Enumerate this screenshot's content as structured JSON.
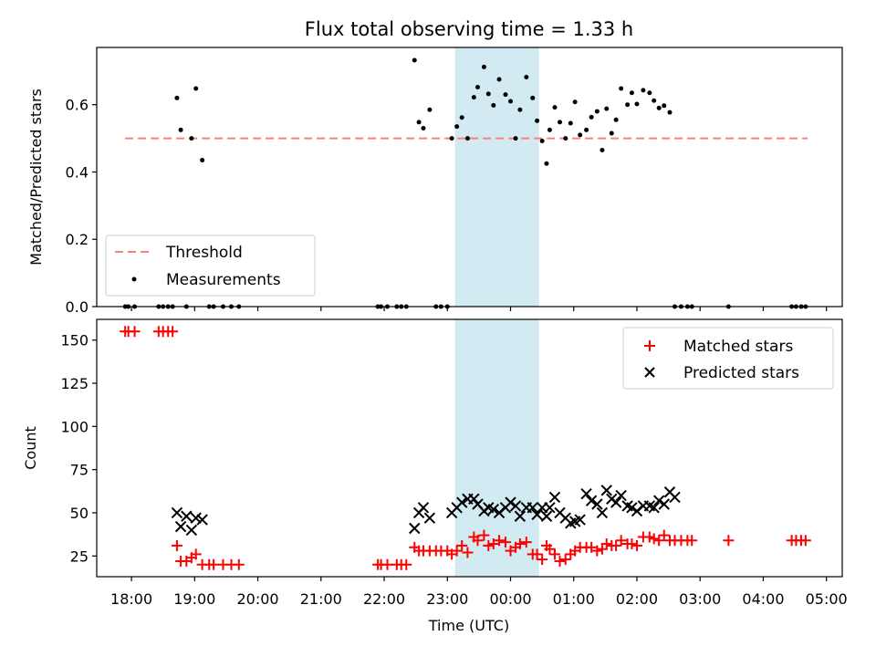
{
  "chart_data": [
    {
      "type": "scatter",
      "title": "Flux total observing time = 1.33 h",
      "xlabel": "",
      "ylabel": "Matched/Predicted stars",
      "ylim": [
        0,
        0.77
      ],
      "yticks": [
        0.0,
        0.2,
        0.4,
        0.6
      ],
      "ytick_labels": [
        "0.0",
        "0.2",
        "0.4",
        "0.6"
      ],
      "grid": false,
      "legend": "lower-left",
      "threshold": {
        "name": "Threshold",
        "value": 0.5,
        "x_start": 17.9,
        "x_end": 28.7,
        "color": "#ff7f7f"
      },
      "series": [
        {
          "name": "Measurements",
          "color": "#000000",
          "x": [
            17.9,
            17.95,
            18.05,
            18.43,
            18.5,
            18.58,
            18.65,
            18.72,
            18.78,
            18.87,
            18.95,
            19.02,
            19.12,
            19.23,
            19.3,
            19.45,
            19.58,
            19.7,
            21.9,
            21.95,
            22.05,
            22.2,
            22.27,
            22.35,
            22.48,
            22.55,
            22.62,
            22.72,
            22.82,
            22.9,
            23.0,
            23.07,
            23.15,
            23.23,
            23.32,
            23.42,
            23.48,
            23.58,
            23.65,
            23.73,
            23.82,
            23.92,
            24.0,
            24.08,
            24.15,
            24.25,
            24.35,
            24.42,
            24.5,
            24.57,
            24.62,
            24.7,
            24.78,
            24.87,
            24.95,
            25.02,
            25.1,
            25.2,
            25.28,
            25.37,
            25.45,
            25.52,
            25.6,
            25.67,
            25.75,
            25.85,
            25.92,
            26.0,
            26.1,
            26.2,
            26.27,
            26.35,
            26.43,
            26.52,
            26.6,
            26.7,
            26.8,
            26.87,
            27.45,
            28.45,
            28.52,
            28.6,
            28.67
          ],
          "y": [
            0.0,
            0.0,
            0.0,
            0.0,
            0.0,
            0.0,
            0.0,
            0.62,
            0.525,
            0.0,
            0.5,
            0.648,
            0.435,
            0.0,
            0.0,
            0.0,
            0.0,
            0.0,
            0.0,
            0.0,
            0.0,
            0.0,
            0.0,
            0.0,
            0.732,
            0.548,
            0.53,
            0.585,
            0.0,
            0.0,
            0.0,
            0.5,
            0.535,
            0.562,
            0.5,
            0.622,
            0.652,
            0.712,
            0.632,
            0.598,
            0.675,
            0.63,
            0.61,
            0.5,
            0.585,
            0.682,
            0.62,
            0.552,
            0.492,
            0.425,
            0.525,
            0.592,
            0.548,
            0.5,
            0.545,
            0.608,
            0.51,
            0.525,
            0.563,
            0.58,
            0.465,
            0.588,
            0.515,
            0.555,
            0.648,
            0.6,
            0.635,
            0.602,
            0.643,
            0.635,
            0.612,
            0.59,
            0.597,
            0.577,
            0.0,
            0.0,
            0.0,
            0.0,
            0.0,
            0.0,
            0.0,
            0.0,
            0.0
          ]
        }
      ]
    },
    {
      "type": "scatter",
      "title": "",
      "xlabel": "Time (UTC)",
      "ylabel": "Count",
      "ylim": [
        13,
        162
      ],
      "yticks": [
        25,
        50,
        75,
        100,
        125,
        150
      ],
      "ytick_labels": [
        "25",
        "50",
        "75",
        "100",
        "125",
        "150"
      ],
      "xlim": [
        17.45,
        29.25
      ],
      "xticks": [
        18,
        19,
        20,
        21,
        22,
        23,
        24,
        25,
        26,
        27,
        28,
        29
      ],
      "xtick_labels": [
        "18:00",
        "19:00",
        "20:00",
        "21:00",
        "22:00",
        "23:00",
        "00:00",
        "01:00",
        "02:00",
        "03:00",
        "04:00",
        "05:00"
      ],
      "grid": false,
      "legend": "top-right",
      "series": [
        {
          "name": "Matched stars",
          "marker": "plus",
          "color": "#ff0000",
          "x": [
            17.9,
            17.95,
            18.05,
            18.43,
            18.5,
            18.58,
            18.65,
            18.72,
            18.78,
            18.87,
            18.95,
            19.02,
            19.12,
            19.23,
            19.3,
            19.45,
            19.58,
            19.7,
            21.9,
            21.95,
            22.05,
            22.2,
            22.27,
            22.35,
            22.48,
            22.55,
            22.62,
            22.72,
            22.82,
            22.9,
            23.0,
            23.07,
            23.15,
            23.23,
            23.32,
            23.42,
            23.48,
            23.58,
            23.65,
            23.73,
            23.82,
            23.92,
            24.0,
            24.08,
            24.15,
            24.25,
            24.35,
            24.42,
            24.5,
            24.57,
            24.62,
            24.7,
            24.78,
            24.87,
            24.95,
            25.02,
            25.1,
            25.2,
            25.28,
            25.37,
            25.45,
            25.52,
            25.6,
            25.67,
            25.75,
            25.85,
            25.92,
            26.0,
            26.1,
            26.2,
            26.27,
            26.35,
            26.43,
            26.52,
            26.6,
            26.7,
            26.8,
            26.87,
            27.45,
            28.45,
            28.52,
            28.6,
            28.67
          ],
          "y": [
            155,
            155,
            155,
            155,
            155,
            155,
            155,
            31,
            22,
            22,
            24,
            26,
            20,
            20,
            20,
            20,
            20,
            20,
            20,
            20,
            20,
            20,
            20,
            20,
            30,
            28,
            28,
            28,
            28,
            28,
            28,
            26,
            28,
            31,
            27,
            36,
            34,
            37,
            31,
            32,
            34,
            33,
            28,
            30,
            32,
            33,
            26,
            26,
            23,
            31,
            29,
            26,
            22,
            23,
            26,
            28,
            30,
            30,
            30,
            28,
            29,
            32,
            31,
            31,
            34,
            32,
            32,
            31,
            36,
            36,
            35,
            34,
            37,
            34,
            34,
            34,
            34,
            34,
            34,
            34,
            34,
            34,
            34
          ]
        },
        {
          "name": "Predicted stars",
          "marker": "x",
          "color": "#000000",
          "x": [
            18.72,
            18.78,
            18.87,
            18.95,
            19.02,
            19.12,
            22.48,
            22.55,
            22.62,
            22.72,
            23.07,
            23.15,
            23.23,
            23.32,
            23.42,
            23.48,
            23.58,
            23.65,
            23.73,
            23.82,
            23.92,
            24.0,
            24.08,
            24.15,
            24.25,
            24.35,
            24.42,
            24.5,
            24.57,
            24.62,
            24.7,
            24.78,
            24.87,
            24.95,
            25.02,
            25.1,
            25.2,
            25.28,
            25.37,
            25.45,
            25.52,
            25.6,
            25.67,
            25.75,
            25.85,
            25.92,
            26.0,
            26.1,
            26.2,
            26.27,
            26.35,
            26.43,
            26.52,
            26.6
          ],
          "y": [
            50,
            42,
            48,
            40,
            47,
            46,
            41,
            50,
            53,
            47,
            50,
            53,
            56,
            58,
            58,
            55,
            51,
            53,
            52,
            50,
            53,
            56,
            54,
            48,
            53,
            53,
            49,
            53,
            48,
            53,
            59,
            50,
            47,
            44,
            45,
            46,
            61,
            57,
            55,
            50,
            63,
            58,
            56,
            60,
            54,
            53,
            51,
            54,
            54,
            53,
            57,
            55,
            62,
            59
          ]
        }
      ],
      "shaded_span": {
        "x_start": 23.12,
        "x_end": 24.45,
        "color": "#add8e6"
      }
    }
  ]
}
